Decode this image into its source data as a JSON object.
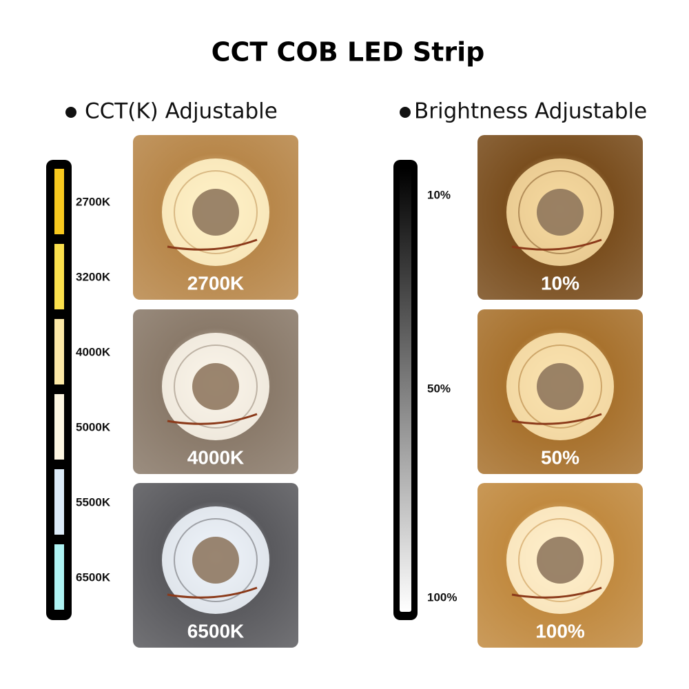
{
  "title": "CCT COB LED Strip",
  "left": {
    "heading": "CCT(K) Adjustable",
    "levels": [
      {
        "label": "2700K",
        "color": "#f7c81e"
      },
      {
        "label": "3200K",
        "color": "#fbe04c"
      },
      {
        "label": "4000K",
        "color": "#fbe8a6"
      },
      {
        "label": "5000K",
        "color": "#fdf6e2"
      },
      {
        "label": "5500K",
        "color": "#dcebf8"
      },
      {
        "label": "6500K",
        "color": "#aef3f3"
      }
    ],
    "photos": [
      {
        "label": "2700K",
        "bg": "#b8874a",
        "glow": "#fff2c8"
      },
      {
        "label": "4000K",
        "bg": "#8a7a6a",
        "glow": "#fbf5ea"
      },
      {
        "label": "6500K",
        "bg": "#5a5a5e",
        "glow": "#eef4fb"
      }
    ]
  },
  "right": {
    "heading": "Brightness Adjustable",
    "levels": [
      {
        "label": "10%"
      },
      {
        "label": "50%"
      },
      {
        "label": "100%"
      }
    ],
    "photos": [
      {
        "label": "10%",
        "bg": "#7a4e1e",
        "glow": "#f6d9a0"
      },
      {
        "label": "50%",
        "bg": "#a8722e",
        "glow": "#fbe3b0"
      },
      {
        "label": "100%",
        "bg": "#c18a40",
        "glow": "#fff0cc"
      }
    ]
  }
}
